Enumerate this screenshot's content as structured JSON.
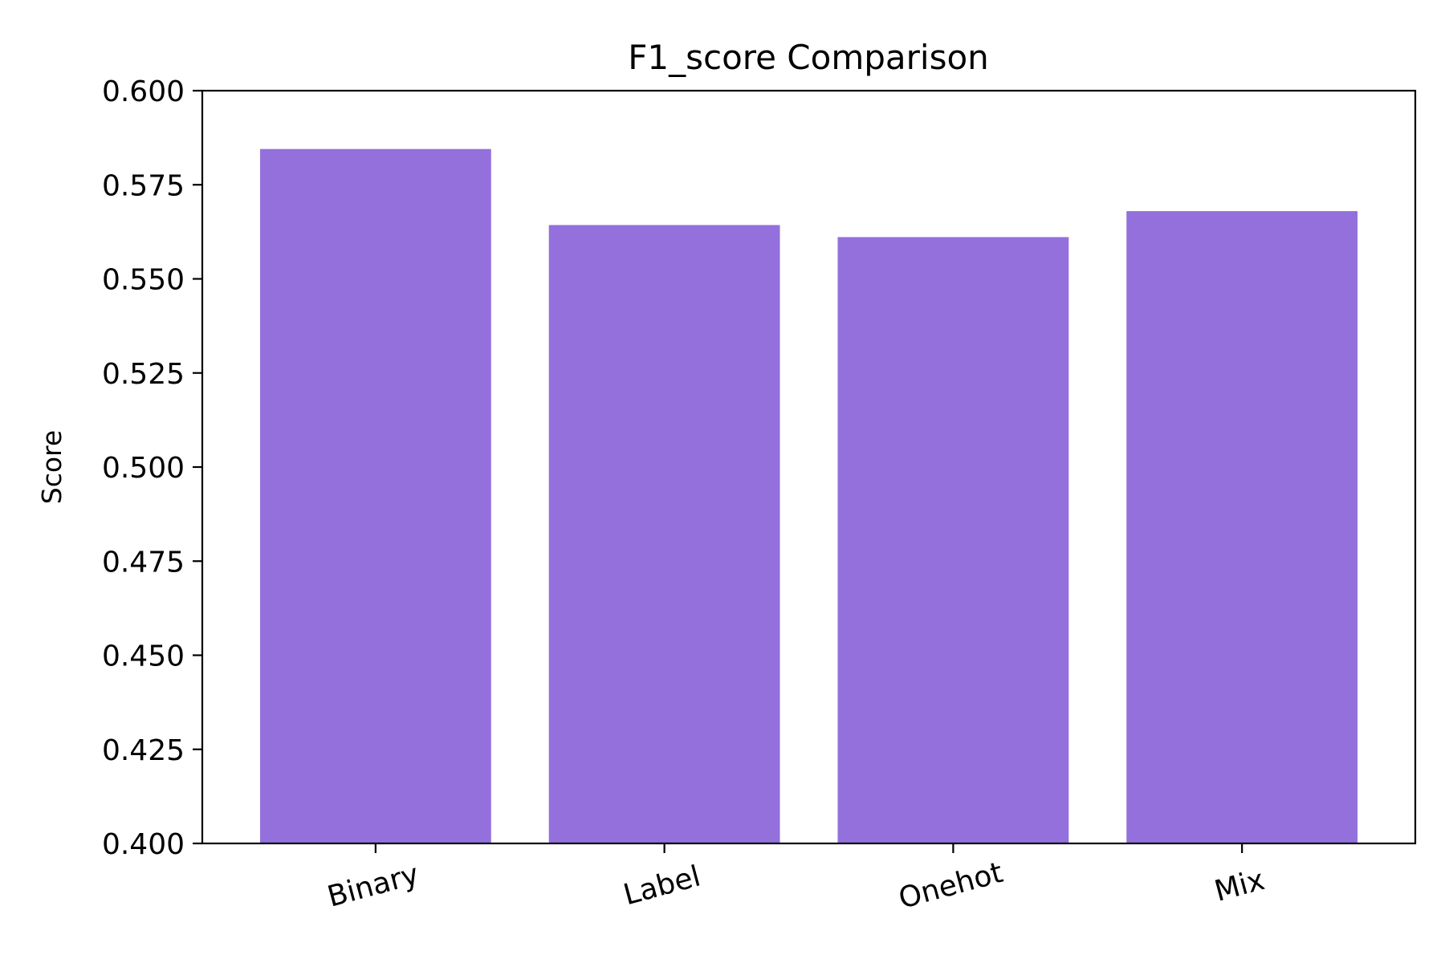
{
  "chart_data": {
    "type": "bar",
    "title": "F1_score Comparison",
    "xlabel": "",
    "ylabel": "Score",
    "categories": [
      "Binary",
      "Label",
      "Onehot",
      "Mix"
    ],
    "values": [
      0.5845,
      0.5643,
      0.5611,
      0.568
    ],
    "ylim": [
      0.4,
      0.6
    ],
    "yticks": [
      "0.400",
      "0.425",
      "0.450",
      "0.475",
      "0.500",
      "0.525",
      "0.550",
      "0.575",
      "0.600"
    ],
    "bar_color": "#9370db",
    "grid": false,
    "legend": "none"
  }
}
